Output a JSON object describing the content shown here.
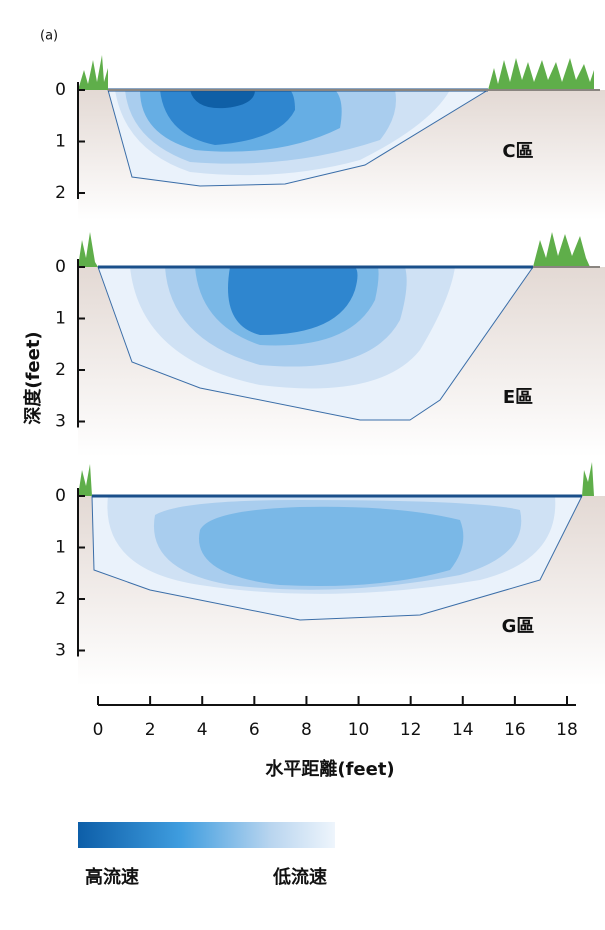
{
  "figure_label": "(a)",
  "y_axis_label": "深度(feet)",
  "x_axis_label": "水平距離(feet)",
  "xlim": [
    0,
    18
  ],
  "xticks": [
    0,
    2,
    4,
    6,
    8,
    10,
    12,
    14,
    16,
    18
  ],
  "panels": [
    {
      "label": "C區",
      "ylim": [
        0,
        2
      ],
      "yticks": [
        0,
        1,
        2
      ]
    },
    {
      "label": "E區",
      "ylim": [
        0,
        3
      ],
      "yticks": [
        0,
        1,
        2,
        3
      ]
    },
    {
      "label": "G區",
      "ylim": [
        0,
        3
      ],
      "yticks": [
        0,
        1,
        2,
        3
      ]
    }
  ],
  "legend": {
    "high": "高流速",
    "low": "低流速"
  }
}
